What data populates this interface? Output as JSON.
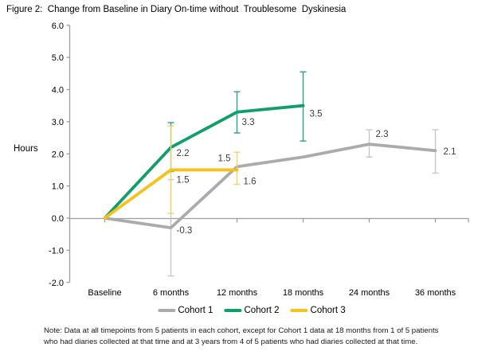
{
  "figure_title": "Figure 2:  Change from Baseline in Diary On-time without  Troublesome  Dyskinesia",
  "note": {
    "lines": [
      "Note: Data at all timepoints from 5 patients in each cohort, except for Cohort 1 data at 18 months from 1 of 5 patients",
      "who had diaries collected at that time and at 3 years from 4 of 5 patients who had diaries collected at that time."
    ]
  },
  "chart_data": {
    "type": "line",
    "title": "Figure 2: Change from Baseline in Diary On-time without Troublesome Dyskinesia",
    "xlabel": "",
    "ylabel": "Hours",
    "categories": [
      "Baseline",
      "6 months",
      "12 months",
      "18 months",
      "24 months",
      "36 months"
    ],
    "ylim": [
      -2.0,
      6.0
    ],
    "ytick_step": 1.0,
    "ytick_labels": [
      "6.0",
      "5.0",
      "4.0",
      "3.0",
      "2.0",
      "1.0",
      "0.0",
      "-1.0",
      "-2.0"
    ],
    "grid": false,
    "legend_position": "bottom",
    "axis_color": "#9d9d9d",
    "tick_label_color": "#000000",
    "data_label_color": "#3d3d3d",
    "series": [
      {
        "name": "Cohort 1",
        "color": "#ABABAB",
        "error_color": "#C8C8C8",
        "values": [
          0.0,
          -0.3,
          1.6,
          1.9,
          2.3,
          2.1
        ],
        "point_labels": [
          {
            "i": 1,
            "text": "-0.3",
            "dx": 7,
            "dy": 7
          },
          {
            "i": 2,
            "text": "1.6",
            "dx": 8,
            "dy": 22
          },
          {
            "i": 4,
            "text": "2.3",
            "dx": 8,
            "dy": -9
          },
          {
            "i": 5,
            "text": "2.1",
            "dx": 10,
            "dy": 5
          }
        ],
        "error_bars": [
          {
            "i": 1,
            "low": -1.8,
            "high": 1.2
          },
          {
            "i": 4,
            "low": 1.9,
            "high": 2.75
          },
          {
            "i": 5,
            "low": 1.4,
            "high": 2.75
          }
        ]
      },
      {
        "name": "Cohort 2",
        "color": "#0FA069",
        "error_color": "#2F9E85",
        "values": [
          0.0,
          2.2,
          3.3,
          3.5,
          null,
          null
        ],
        "point_labels": [
          {
            "i": 1,
            "text": "2.2",
            "dx": 7,
            "dy": 11
          },
          {
            "i": 2,
            "text": "3.3",
            "dx": 6,
            "dy": 16
          },
          {
            "i": 3,
            "text": "3.5",
            "dx": 8,
            "dy": 14
          }
        ],
        "error_bars": [
          {
            "i": 1,
            "low": 1.45,
            "high": 2.97
          },
          {
            "i": 2,
            "low": 2.65,
            "high": 3.93
          },
          {
            "i": 3,
            "low": 2.4,
            "high": 4.55
          }
        ]
      },
      {
        "name": "Cohort 3",
        "color": "#F6C21A",
        "error_color": "#EFD271",
        "values": [
          0.0,
          1.5,
          1.5,
          null,
          null,
          null
        ],
        "point_labels": [
          {
            "i": 1,
            "text": "1.5",
            "dx": 7,
            "dy": 16
          },
          {
            "i": 2,
            "text": "1.5",
            "dx": -24,
            "dy": -11
          }
        ],
        "error_bars": [
          {
            "i": 1,
            "low": 0.15,
            "high": 2.87
          },
          {
            "i": 2,
            "low": 1.05,
            "high": 2.05
          }
        ]
      }
    ]
  }
}
